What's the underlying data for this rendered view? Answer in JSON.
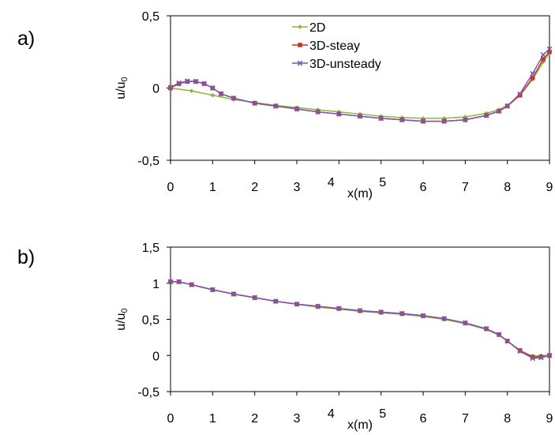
{
  "colors": {
    "2D": "#8db53a",
    "3D-steay": "#c0392b",
    "3D-unsteady": "#7b57b0"
  },
  "panels": [
    {
      "label": "a)"
    },
    {
      "label": "b)"
    }
  ],
  "chart_data": [
    {
      "type": "line",
      "panel": "a)",
      "xlabel": "x(m)",
      "ylabel": "u/u",
      "ylabel_sub": "0",
      "xlim": [
        0,
        9
      ],
      "ylim": [
        -0.5,
        0.5
      ],
      "x_ticks": [
        "0",
        "1",
        "2",
        "3",
        "4",
        "5",
        "6",
        "7",
        "8",
        "9"
      ],
      "y_ticks": [
        {
          "value": -0.5,
          "label": "-0,5"
        },
        {
          "value": 0,
          "label": "0"
        },
        {
          "value": 0.5,
          "label": "0,5"
        }
      ],
      "legend": "top-center",
      "grid": false,
      "series": [
        {
          "name": "2D",
          "color": "#8db53a",
          "marker": "diamond",
          "points": [
            [
              0,
              0
            ],
            [
              0.5,
              -0.02
            ],
            [
              1,
              -0.05
            ],
            [
              1.5,
              -0.08
            ],
            [
              2,
              -0.1
            ],
            [
              2.5,
              -0.12
            ],
            [
              3,
              -0.135
            ],
            [
              3.5,
              -0.15
            ],
            [
              4,
              -0.165
            ],
            [
              4.5,
              -0.18
            ],
            [
              5,
              -0.195
            ],
            [
              5.5,
              -0.205
            ],
            [
              6,
              -0.21
            ],
            [
              6.5,
              -0.21
            ],
            [
              7,
              -0.2
            ],
            [
              7.5,
              -0.175
            ],
            [
              7.8,
              -0.15
            ],
            [
              8,
              -0.12
            ],
            [
              8.3,
              -0.05
            ],
            [
              8.6,
              0.06
            ],
            [
              8.85,
              0.18
            ],
            [
              9,
              0.24
            ]
          ]
        },
        {
          "name": "3D-steay",
          "color": "#c0392b",
          "marker": "square",
          "points": [
            [
              0,
              0
            ],
            [
              0.2,
              0.03
            ],
            [
              0.4,
              0.045
            ],
            [
              0.6,
              0.045
            ],
            [
              0.8,
              0.03
            ],
            [
              1,
              0
            ],
            [
              1.2,
              -0.04
            ],
            [
              1.5,
              -0.07
            ],
            [
              2,
              -0.105
            ],
            [
              2.5,
              -0.125
            ],
            [
              3,
              -0.145
            ],
            [
              3.5,
              -0.165
            ],
            [
              4,
              -0.18
            ],
            [
              4.5,
              -0.195
            ],
            [
              5,
              -0.21
            ],
            [
              5.5,
              -0.22
            ],
            [
              6,
              -0.23
            ],
            [
              6.5,
              -0.23
            ],
            [
              7,
              -0.22
            ],
            [
              7.5,
              -0.19
            ],
            [
              7.8,
              -0.16
            ],
            [
              8,
              -0.125
            ],
            [
              8.3,
              -0.05
            ],
            [
              8.6,
              0.07
            ],
            [
              8.85,
              0.2
            ],
            [
              9,
              0.25
            ]
          ]
        },
        {
          "name": "3D-unsteady",
          "color": "#7b57b0",
          "marker": "x",
          "points": [
            [
              0,
              0.005
            ],
            [
              0.2,
              0.035
            ],
            [
              0.4,
              0.048
            ],
            [
              0.6,
              0.046
            ],
            [
              0.8,
              0.03
            ],
            [
              1,
              0
            ],
            [
              1.2,
              -0.04
            ],
            [
              1.5,
              -0.07
            ],
            [
              2,
              -0.105
            ],
            [
              2.5,
              -0.125
            ],
            [
              3,
              -0.145
            ],
            [
              3.5,
              -0.165
            ],
            [
              4,
              -0.18
            ],
            [
              4.5,
              -0.195
            ],
            [
              5,
              -0.21
            ],
            [
              5.5,
              -0.22
            ],
            [
              6,
              -0.23
            ],
            [
              6.5,
              -0.23
            ],
            [
              7,
              -0.22
            ],
            [
              7.5,
              -0.19
            ],
            [
              7.8,
              -0.16
            ],
            [
              8,
              -0.125
            ],
            [
              8.3,
              -0.04
            ],
            [
              8.6,
              0.1
            ],
            [
              8.85,
              0.23
            ],
            [
              9,
              0.27
            ]
          ]
        }
      ]
    },
    {
      "type": "line",
      "panel": "b)",
      "xlabel": "x(m)",
      "ylabel": "u/u",
      "ylabel_sub": "0",
      "xlim": [
        0,
        9
      ],
      "ylim": [
        -0.5,
        1.5
      ],
      "x_ticks": [
        "0",
        "1",
        "2",
        "3",
        "4",
        "5",
        "6",
        "7",
        "8",
        "9"
      ],
      "y_ticks": [
        {
          "value": -0.5,
          "label": "-0,5"
        },
        {
          "value": 0,
          "label": "0"
        },
        {
          "value": 0.5,
          "label": "0,5"
        },
        {
          "value": 1,
          "label": "1"
        },
        {
          "value": 1.5,
          "label": "1,5"
        }
      ],
      "grid": false,
      "series": [
        {
          "name": "2D",
          "color": "#8db53a",
          "marker": "diamond",
          "points": [
            [
              0,
              1.02
            ],
            [
              0.2,
              1.02
            ],
            [
              0.5,
              0.98
            ],
            [
              1,
              0.91
            ],
            [
              1.5,
              0.85
            ],
            [
              2,
              0.8
            ],
            [
              2.5,
              0.75
            ],
            [
              3,
              0.71
            ],
            [
              3.5,
              0.67
            ],
            [
              4,
              0.64
            ],
            [
              4.5,
              0.61
            ],
            [
              5,
              0.59
            ],
            [
              5.5,
              0.57
            ],
            [
              6,
              0.54
            ],
            [
              6.5,
              0.5
            ],
            [
              7,
              0.44
            ],
            [
              7.5,
              0.36
            ],
            [
              7.8,
              0.28
            ],
            [
              8,
              0.2
            ],
            [
              8.3,
              0.06
            ],
            [
              8.6,
              -0.01
            ],
            [
              8.8,
              0
            ],
            [
              9,
              0
            ]
          ]
        },
        {
          "name": "3D-steay",
          "color": "#c0392b",
          "marker": "square",
          "points": [
            [
              0,
              1.02
            ],
            [
              0.2,
              1.02
            ],
            [
              0.5,
              0.98
            ],
            [
              1,
              0.91
            ],
            [
              1.5,
              0.85
            ],
            [
              2,
              0.8
            ],
            [
              2.5,
              0.75
            ],
            [
              3,
              0.71
            ],
            [
              3.5,
              0.68
            ],
            [
              4,
              0.65
            ],
            [
              4.5,
              0.62
            ],
            [
              5,
              0.6
            ],
            [
              5.5,
              0.58
            ],
            [
              6,
              0.55
            ],
            [
              6.5,
              0.51
            ],
            [
              7,
              0.45
            ],
            [
              7.5,
              0.37
            ],
            [
              7.8,
              0.29
            ],
            [
              8,
              0.2
            ],
            [
              8.3,
              0.07
            ],
            [
              8.6,
              -0.02
            ],
            [
              8.8,
              -0.02
            ],
            [
              9,
              0
            ]
          ]
        },
        {
          "name": "3D-unsteady",
          "color": "#7b57b0",
          "marker": "x",
          "points": [
            [
              0,
              1.02
            ],
            [
              0.2,
              1.02
            ],
            [
              0.5,
              0.98
            ],
            [
              1,
              0.91
            ],
            [
              1.5,
              0.85
            ],
            [
              2,
              0.8
            ],
            [
              2.5,
              0.75
            ],
            [
              3,
              0.71
            ],
            [
              3.5,
              0.68
            ],
            [
              4,
              0.65
            ],
            [
              4.5,
              0.62
            ],
            [
              5,
              0.6
            ],
            [
              5.5,
              0.58
            ],
            [
              6,
              0.55
            ],
            [
              6.5,
              0.51
            ],
            [
              7,
              0.45
            ],
            [
              7.5,
              0.37
            ],
            [
              7.8,
              0.29
            ],
            [
              8,
              0.2
            ],
            [
              8.3,
              0.06
            ],
            [
              8.6,
              -0.04
            ],
            [
              8.8,
              -0.03
            ],
            [
              9,
              0
            ]
          ]
        }
      ]
    }
  ]
}
